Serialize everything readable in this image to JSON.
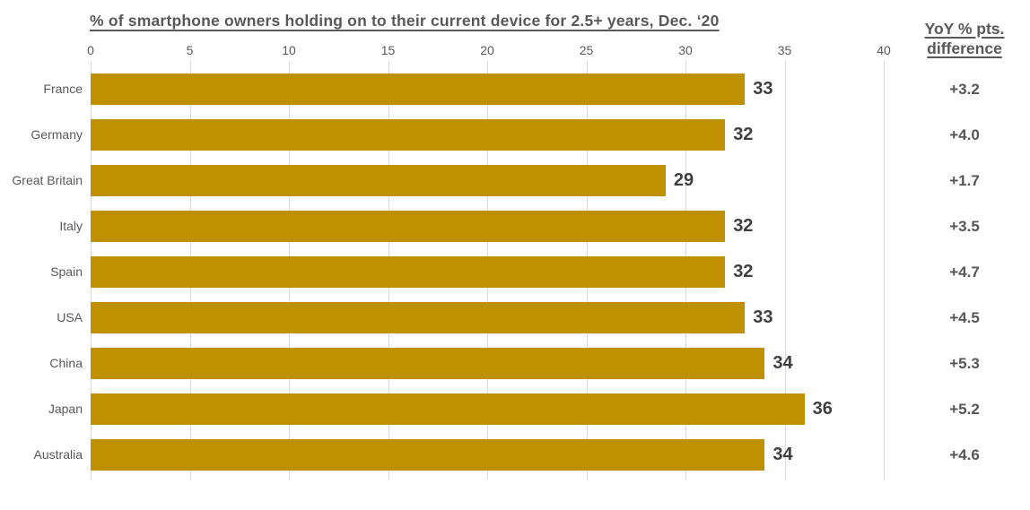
{
  "header": {
    "yoy_line1": "YoY % pts.",
    "yoy_line2": "difference"
  },
  "chart_data": {
    "type": "bar",
    "orientation": "horizontal",
    "title": "% of smartphone owners holding on to their current device for 2.5+ years, Dec. ‘20",
    "categories": [
      "France",
      "Germany",
      "Great Britain",
      "Italy",
      "Spain",
      "USA",
      "China",
      "Japan",
      "Australia"
    ],
    "values": [
      33,
      32,
      29,
      32,
      32,
      33,
      34,
      36,
      34
    ],
    "value_labels": [
      "33",
      "32",
      "29",
      "32",
      "32",
      "33",
      "34",
      "36",
      "34"
    ],
    "yoy_series_name": "YoY % pts. difference",
    "yoy_values": [
      3.2,
      4.0,
      1.7,
      3.5,
      4.7,
      4.5,
      5.3,
      5.2,
      4.6
    ],
    "yoy_labels": [
      "+3.2",
      "+4.0",
      "+1.7",
      "+3.5",
      "+4.7",
      "+4.5",
      "+5.3",
      "+5.2",
      "+4.6"
    ],
    "x_ticks": [
      0,
      5,
      10,
      15,
      20,
      25,
      30,
      35,
      40
    ],
    "xlim": [
      0,
      40
    ],
    "xlabel": "",
    "ylabel": "",
    "grid": true,
    "legend": false,
    "bar_color": "#bf9000",
    "gridline_color": "#d9d9d9",
    "axis_text_color": "#595959",
    "value_text_color": "#3f3f3f"
  }
}
